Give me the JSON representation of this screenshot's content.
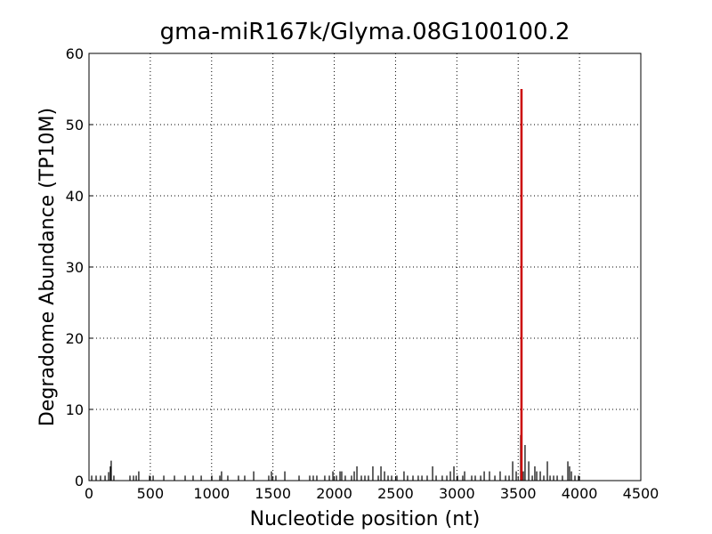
{
  "chart_data": {
    "type": "stem",
    "title": "gma-miR167k/Glyma.08G100100.2",
    "xlabel": "Nucleotide position (nt)",
    "ylabel": "Degradome Abundance (TP10M)",
    "xlim": [
      0,
      4500
    ],
    "xticks": [
      0,
      500,
      1000,
      1500,
      2000,
      2500,
      3000,
      3500,
      4000,
      4500
    ],
    "ylim": [
      0,
      60
    ],
    "yticks": [
      0,
      10,
      20,
      30,
      40,
      50,
      60
    ],
    "grid": true,
    "series": [
      {
        "color": "#000000",
        "x": [
          22,
          58,
          94,
          131,
          160,
          174,
          181,
          203,
          334,
          363,
          385,
          406,
          494,
          523,
          610,
          697,
          784,
          849,
          915,
          1002,
          1067,
          1081,
          1132,
          1219,
          1270,
          1343,
          1466,
          1488,
          1524,
          1597,
          1713,
          1800,
          1829,
          1858,
          1923,
          1960,
          1989,
          2018,
          2047,
          2061,
          2090,
          2141,
          2163,
          2185,
          2221,
          2250,
          2279,
          2315,
          2359,
          2381,
          2410,
          2439,
          2468,
          2511,
          2569,
          2598,
          2642,
          2685,
          2715,
          2758,
          2802,
          2831,
          2881,
          2918,
          2947,
          2976,
          3005,
          3048,
          3063,
          3121,
          3150,
          3194,
          3223,
          3266,
          3310,
          3353,
          3397,
          3426,
          3455,
          3484,
          3520,
          3542,
          3556,
          3586,
          3615,
          3636,
          3651,
          3680,
          3709,
          3738,
          3760,
          3789,
          3818,
          3861,
          3905,
          3919,
          3934,
          3963,
          3992
        ],
        "values": [
          0.7,
          0.7,
          0.7,
          0.7,
          1.2,
          2.0,
          2.8,
          0.7,
          0.7,
          0.7,
          0.7,
          1.3,
          0.7,
          0.7,
          0.7,
          0.7,
          0.7,
          0.7,
          0.7,
          0.7,
          0.7,
          1.3,
          0.7,
          0.7,
          0.7,
          1.3,
          0.7,
          1.3,
          0.7,
          1.3,
          0.7,
          0.7,
          0.7,
          0.7,
          0.7,
          0.7,
          1.3,
          0.7,
          1.3,
          1.3,
          0.7,
          0.7,
          1.3,
          2.0,
          0.7,
          0.7,
          0.7,
          2.0,
          0.7,
          2.0,
          1.3,
          0.7,
          0.7,
          0.7,
          1.3,
          0.7,
          0.7,
          0.7,
          0.7,
          0.7,
          2.0,
          0.7,
          0.7,
          0.7,
          1.3,
          2.0,
          0.7,
          0.7,
          1.3,
          0.7,
          0.7,
          0.7,
          1.3,
          1.3,
          0.7,
          1.3,
          0.7,
          0.7,
          2.7,
          1.3,
          6.4,
          1.3,
          5.0,
          2.7,
          0.7,
          2.0,
          1.3,
          1.3,
          0.7,
          2.7,
          0.7,
          0.7,
          0.7,
          0.7,
          2.7,
          2.0,
          1.3,
          0.7,
          0.7
        ]
      },
      {
        "color": "#cc0000",
        "x": [
          3527
        ],
        "values": [
          55
        ]
      }
    ]
  }
}
